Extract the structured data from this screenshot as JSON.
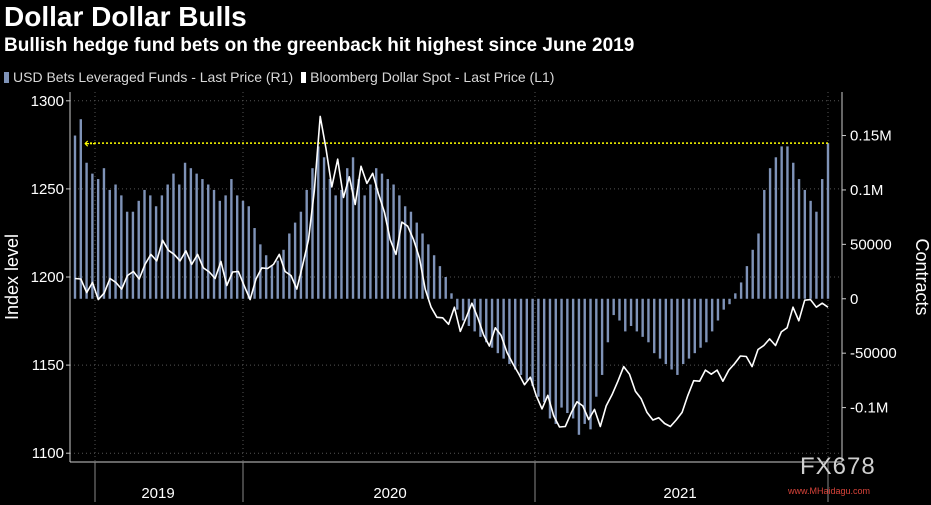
{
  "header": {
    "title": "Dollar Dollar Bulls",
    "subtitle": "Bullish hedge fund bets on the greenback hit highest since June 2019"
  },
  "legend": {
    "bars_label": "USD Bets Leveraged Funds - Last Price (R1)",
    "line_label": "Bloomberg Dollar Spot - Last Price (L1)"
  },
  "watermark": {
    "text": "FX678",
    "url": "www.MHaidagu.com"
  },
  "colors": {
    "bars": "#7f93b8",
    "line": "#ffffff",
    "reference": "#ffff00",
    "grid": "#555555"
  },
  "chart_data": {
    "type": "bar+line",
    "x_labels": [
      "2019",
      "2020",
      "2021"
    ],
    "left_axis": {
      "title": "Index level",
      "ticks": [
        "1300",
        "1250",
        "1200",
        "1150",
        "1100"
      ],
      "range": [
        1095,
        1305
      ]
    },
    "right_axis": {
      "title": "Contracts",
      "ticks": [
        "0.15M",
        "0.1M",
        "50000",
        "0",
        "-50000",
        "-0.1M"
      ],
      "range": [
        -150000,
        190000
      ]
    },
    "reference_line": {
      "value": 143000,
      "label": "highest since June 2019"
    },
    "bars": {
      "name": "USD Bets Leveraged Funds - Last Price (R1)",
      "values": [
        150000,
        165000,
        125000,
        115000,
        110000,
        120000,
        100000,
        105000,
        95000,
        80000,
        80000,
        90000,
        100000,
        95000,
        85000,
        95000,
        105000,
        115000,
        105000,
        125000,
        120000,
        115000,
        110000,
        105000,
        100000,
        90000,
        95000,
        110000,
        95000,
        90000,
        85000,
        65000,
        50000,
        40000,
        30000,
        35000,
        45000,
        60000,
        70000,
        80000,
        100000,
        120000,
        140000,
        130000,
        110000,
        95000,
        100000,
        120000,
        130000,
        110000,
        95000,
        105000,
        120000,
        115000,
        110000,
        105000,
        95000,
        85000,
        80000,
        70000,
        60000,
        50000,
        40000,
        30000,
        20000,
        5000,
        -10000,
        -20000,
        -25000,
        -30000,
        -35000,
        -40000,
        -45000,
        -50000,
        -55000,
        -60000,
        -65000,
        -70000,
        -75000,
        -80000,
        -90000,
        -95000,
        -110000,
        -115000,
        -100000,
        -105000,
        -110000,
        -125000,
        -115000,
        -120000,
        -90000,
        -70000,
        -40000,
        -15000,
        -20000,
        -30000,
        -25000,
        -30000,
        -35000,
        -40000,
        -50000,
        -55000,
        -60000,
        -65000,
        -70000,
        -60000,
        -55000,
        -50000,
        -45000,
        -40000,
        -30000,
        -20000,
        -10000,
        -5000,
        5000,
        15000,
        30000,
        45000,
        60000,
        100000,
        120000,
        130000,
        140000,
        140000,
        125000,
        110000,
        100000,
        90000,
        80000,
        110000,
        143000
      ]
    },
    "line": {
      "name": "Bloomberg Dollar Spot - Last Price (L1)",
      "values": [
        1200,
        1198,
        1192,
        1196,
        1188,
        1190,
        1200,
        1196,
        1194,
        1200,
        1204,
        1198,
        1208,
        1212,
        1210,
        1220,
        1216,
        1212,
        1210,
        1214,
        1208,
        1212,
        1206,
        1202,
        1200,
        1208,
        1196,
        1202,
        1204,
        1194,
        1188,
        1198,
        1206,
        1204,
        1208,
        1212,
        1204,
        1200,
        1194,
        1206,
        1222,
        1248,
        1292,
        1272,
        1252,
        1266,
        1246,
        1256,
        1242,
        1262,
        1254,
        1258,
        1248,
        1236,
        1222,
        1212,
        1232,
        1228,
        1222,
        1210,
        1194,
        1182,
        1178,
        1176,
        1174,
        1182,
        1170,
        1176,
        1186,
        1176,
        1168,
        1160,
        1172,
        1166,
        1158,
        1150,
        1146,
        1138,
        1144,
        1132,
        1126,
        1132,
        1122,
        1114,
        1116,
        1122,
        1130,
        1126,
        1120,
        1124,
        1116,
        1126,
        1134,
        1140,
        1150,
        1144,
        1136,
        1130,
        1124,
        1118,
        1121,
        1116,
        1116,
        1118,
        1124,
        1132,
        1142,
        1140,
        1148,
        1144,
        1148,
        1140,
        1148,
        1150,
        1156,
        1154,
        1150,
        1158,
        1162,
        1164,
        1162,
        1168,
        1172,
        1182,
        1176,
        1186,
        1188,
        1182,
        1186,
        1182
      ]
    }
  }
}
